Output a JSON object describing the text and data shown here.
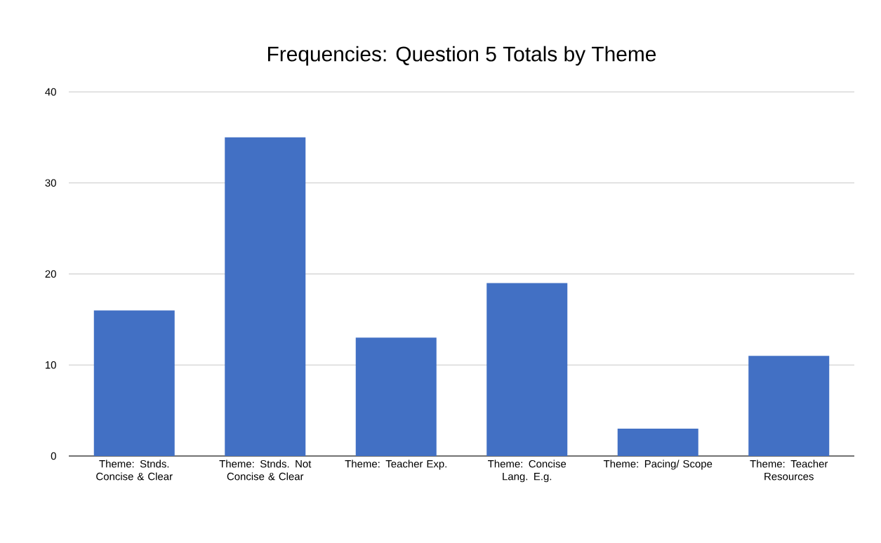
{
  "chart_data": {
    "type": "bar",
    "title": "Frequencies: Question 5 Totals by Theme",
    "categories": [
      "Theme: Stnds. Concise & Clear",
      "Theme: Stnds. Not Concise & Clear",
      "Theme: Teacher Exp.",
      "Theme: Concise Lang. E.g.",
      "Theme: Pacing/ Scope",
      "Theme: Teacher Resources"
    ],
    "values": [
      16,
      35,
      13,
      19,
      3,
      11
    ],
    "color": "#4270c4",
    "ylim": [
      0,
      40
    ],
    "yticks": [
      0,
      10,
      20,
      30,
      40
    ],
    "grid": "y"
  }
}
